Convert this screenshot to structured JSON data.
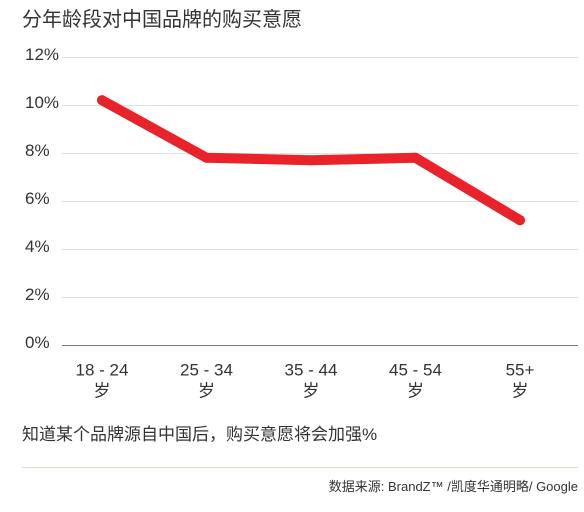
{
  "chart_data": {
    "type": "line",
    "title": "分年龄段对中国品牌的购买意愿",
    "categories": [
      "18 - 24",
      "25 - 34",
      "35 - 44",
      "45 - 54",
      "55+"
    ],
    "category_unit": "岁",
    "values": [
      10.2,
      7.8,
      7.7,
      7.8,
      5.2
    ],
    "ylim": [
      0,
      12
    ],
    "yticks": [
      0,
      2,
      4,
      6,
      8,
      10,
      12
    ],
    "ytick_labels": [
      "0%",
      "2%",
      "4%",
      "6%",
      "8%",
      "10%",
      "12%"
    ],
    "grid": true,
    "show_legend": false,
    "note": "知道某个品牌源自中国后，购买意愿将会加强%",
    "source": "数据来源: BrandZ™ /凯度华通明略/ Google"
  },
  "colors": {
    "line": "#e8232a",
    "grid": "#e1e1e1",
    "baseline": "#7a7a7a",
    "text": "#333333",
    "rule": "#d6e1c6"
  }
}
